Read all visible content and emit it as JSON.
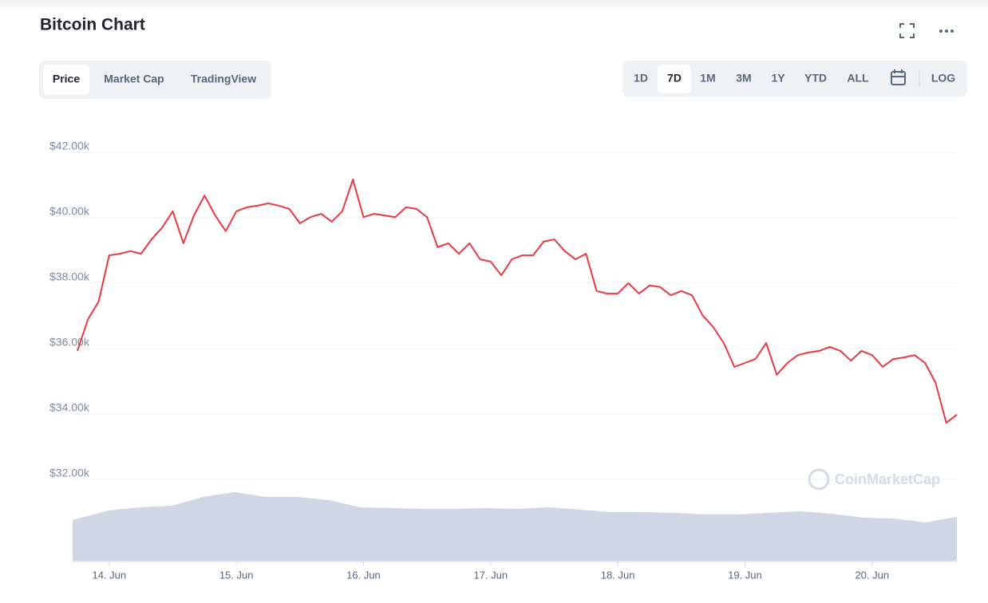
{
  "chart_data": {
    "type": "line",
    "title": "Bitcoin Chart",
    "categories": [
      null,
      null,
      null,
      "14. Jun",
      null,
      null,
      null,
      null,
      null,
      null,
      null,
      null,
      null,
      null,
      null,
      "15. Jun",
      null,
      null,
      null,
      null,
      null,
      null,
      null,
      null,
      null,
      null,
      null,
      "16. Jun",
      null,
      null,
      null,
      null,
      null,
      null,
      null,
      null,
      null,
      null,
      null,
      "17. Jun",
      null,
      null,
      null,
      null,
      null,
      null,
      null,
      null,
      null,
      null,
      null,
      "18. Jun",
      null,
      null,
      null,
      null,
      null,
      null,
      null,
      null,
      null,
      null,
      null,
      "19. Jun",
      null,
      null,
      null,
      null,
      null,
      null,
      null,
      null,
      null,
      null,
      null,
      "20. Jun",
      null,
      null,
      null,
      null,
      null,
      null,
      null,
      null
    ],
    "values": [
      35930,
      36900,
      37440,
      38850,
      38900,
      38980,
      38900,
      39340,
      39700,
      40200,
      39220,
      40070,
      40680,
      40070,
      39590,
      40200,
      40320,
      40370,
      40440,
      40370,
      40270,
      39830,
      40020,
      40120,
      39880,
      40200,
      41170,
      40020,
      40120,
      40070,
      40020,
      40320,
      40270,
      40020,
      39100,
      39220,
      38900,
      39220,
      38730,
      38660,
      38240,
      38730,
      38850,
      38850,
      39270,
      39340,
      38980,
      38730,
      38900,
      37760,
      37680,
      37680,
      38000,
      37680,
      37930,
      37880,
      37630,
      37760,
      37630,
      37020,
      36660,
      36170,
      35440,
      35560,
      35680,
      36170,
      35200,
      35560,
      35800,
      35880,
      35930,
      36050,
      35930,
      35630,
      35930,
      35800,
      35440,
      35680,
      35730,
      35800,
      35560,
      34950,
      33730,
      33980
    ],
    "color": "#ea3943",
    "ylim": [
      32000,
      42000
    ],
    "yticks": [
      {
        "value": 32000,
        "label": "$32.00k"
      },
      {
        "value": 34000,
        "label": "$34.00k"
      },
      {
        "value": 36000,
        "label": "$36.00k"
      },
      {
        "value": 38000,
        "label": "$38.00k"
      },
      {
        "value": 40000,
        "label": "$40.00k"
      },
      {
        "value": 42000,
        "label": "$42.00k"
      }
    ],
    "grid": true,
    "volume": {
      "values": [
        51,
        63,
        67,
        69,
        80,
        86,
        80,
        80,
        76,
        67,
        66,
        65,
        65,
        66,
        65,
        67,
        64,
        61,
        61,
        60,
        58,
        58,
        60,
        62,
        59,
        54,
        53,
        48,
        55
      ],
      "color": "#cfd6e4",
      "lim": [
        0,
        100
      ]
    }
  },
  "tabs": [
    "Price",
    "Market Cap",
    "TradingView"
  ],
  "selected_tab": "Price",
  "ranges": [
    "1D",
    "7D",
    "1M",
    "3M",
    "1Y",
    "YTD",
    "ALL"
  ],
  "selected_range": "7D",
  "scale_toggle": "LOG",
  "watermark": "CoinMarketCap"
}
